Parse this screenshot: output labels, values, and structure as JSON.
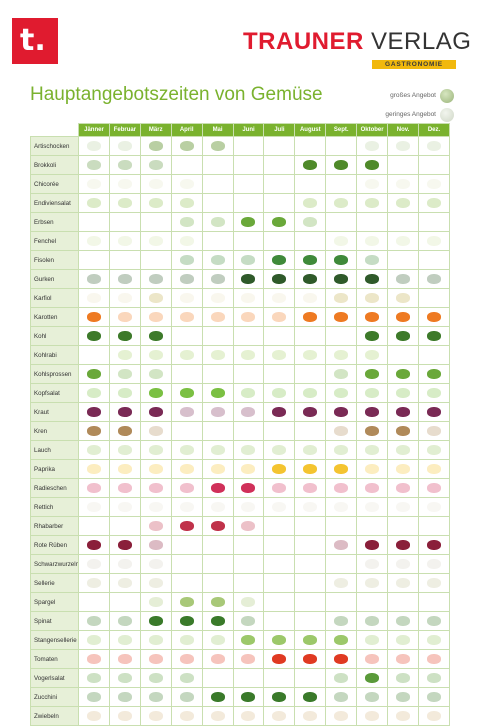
{
  "header": {
    "logo_letter": "t.",
    "brand_bold": "TRAUNER",
    "brand_light": "VERLAG",
    "brand_sub": "GASTRONOMIE"
  },
  "title": "Hauptangebotszeiten von Gemüse",
  "legend": {
    "large_label": "großes Angebot",
    "small_label": "geringes Angebot"
  },
  "months": [
    "Jänner",
    "Februar",
    "März",
    "April",
    "Mai",
    "Juni",
    "Juli",
    "August",
    "Sept.",
    "Oktober",
    "Nov.",
    "Dez."
  ],
  "vegetables": [
    {
      "name": "Artischocken",
      "color": "#b9cfa3",
      "avail": [
        1,
        1,
        2,
        2,
        2,
        0,
        0,
        0,
        0,
        1,
        1,
        1
      ]
    },
    {
      "name": "Brokkoli",
      "color": "#4f8a2a",
      "avail": [
        1,
        1,
        1,
        0,
        0,
        0,
        0,
        2,
        2,
        2,
        0,
        0
      ]
    },
    {
      "name": "Chicorée",
      "color": "#e3e8c9",
      "avail": [
        1,
        1,
        1,
        1,
        0,
        0,
        0,
        0,
        0,
        1,
        1,
        1
      ]
    },
    {
      "name": "Endiviensalat",
      "color": "#8bbd4a",
      "avail": [
        1,
        1,
        1,
        1,
        0,
        0,
        0,
        1,
        1,
        1,
        1,
        1
      ]
    },
    {
      "name": "Erbsen",
      "color": "#6aa83a",
      "avail": [
        0,
        0,
        0,
        1,
        1,
        2,
        2,
        1,
        0,
        0,
        0,
        0
      ]
    },
    {
      "name": "Fenchel",
      "color": "#d3e6b0",
      "avail": [
        1,
        1,
        1,
        1,
        0,
        0,
        0,
        0,
        1,
        1,
        1,
        1
      ]
    },
    {
      "name": "Fisolen",
      "color": "#3f8a3a",
      "avail": [
        0,
        0,
        0,
        1,
        1,
        1,
        2,
        2,
        2,
        1,
        0,
        0
      ]
    },
    {
      "name": "Gurken",
      "color": "#2f5a2a",
      "avail": [
        1,
        1,
        1,
        1,
        1,
        2,
        2,
        2,
        2,
        2,
        1,
        1
      ]
    },
    {
      "name": "Karfiol",
      "color": "#ece6c8",
      "avail": [
        1,
        1,
        2,
        1,
        1,
        1,
        1,
        1,
        2,
        2,
        2,
        0
      ]
    },
    {
      "name": "Karotten",
      "color": "#ee7a22",
      "avail": [
        2,
        1,
        1,
        1,
        1,
        1,
        1,
        2,
        2,
        2,
        2,
        2
      ]
    },
    {
      "name": "Kohl",
      "color": "#3d7a2a",
      "avail": [
        2,
        2,
        2,
        0,
        0,
        0,
        0,
        0,
        0,
        2,
        2,
        2
      ]
    },
    {
      "name": "Kohlrabi",
      "color": "#a9d06a",
      "avail": [
        0,
        1,
        1,
        1,
        1,
        1,
        1,
        1,
        1,
        1,
        0,
        0
      ]
    },
    {
      "name": "Kohlsprossen",
      "color": "#6aa83a",
      "avail": [
        2,
        1,
        1,
        0,
        0,
        0,
        0,
        0,
        1,
        2,
        2,
        2
      ]
    },
    {
      "name": "Kopfsalat",
      "color": "#7bc043",
      "avail": [
        1,
        1,
        2,
        2,
        2,
        1,
        1,
        1,
        1,
        1,
        1,
        1
      ]
    },
    {
      "name": "Kraut",
      "color": "#7a2a55",
      "avail": [
        2,
        2,
        2,
        1,
        1,
        1,
        2,
        2,
        2,
        2,
        2,
        2
      ]
    },
    {
      "name": "Kren",
      "color": "#b08a5a",
      "avail": [
        2,
        2,
        1,
        0,
        0,
        0,
        0,
        0,
        1,
        2,
        2,
        1
      ]
    },
    {
      "name": "Lauch",
      "color": "#9cc86a",
      "avail": [
        1,
        1,
        1,
        1,
        1,
        1,
        1,
        1,
        1,
        1,
        1,
        1
      ]
    },
    {
      "name": "Paprika",
      "color": "#f4c430",
      "avail": [
        1,
        1,
        1,
        1,
        1,
        1,
        2,
        2,
        2,
        1,
        1,
        1
      ]
    },
    {
      "name": "Radieschen",
      "color": "#d0305a",
      "avail": [
        1,
        1,
        1,
        1,
        2,
        2,
        1,
        1,
        1,
        1,
        1,
        1
      ]
    },
    {
      "name": "Rettich",
      "color": "#e8e4d8",
      "avail": [
        1,
        1,
        1,
        1,
        1,
        1,
        1,
        1,
        1,
        1,
        1,
        1
      ]
    },
    {
      "name": "Rhabarber",
      "color": "#c0324a",
      "avail": [
        0,
        0,
        1,
        2,
        2,
        1,
        0,
        0,
        0,
        0,
        0,
        0
      ]
    },
    {
      "name": "Rote Rüben",
      "color": "#8a1f3a",
      "avail": [
        2,
        2,
        1,
        0,
        0,
        0,
        0,
        0,
        1,
        2,
        2,
        2
      ]
    },
    {
      "name": "Schwarzwurzeln",
      "color": "#d8d4c8",
      "avail": [
        1,
        1,
        1,
        0,
        0,
        0,
        0,
        0,
        0,
        1,
        1,
        1
      ]
    },
    {
      "name": "Sellerie",
      "color": "#c8c8a0",
      "avail": [
        1,
        1,
        1,
        0,
        0,
        0,
        0,
        0,
        1,
        1,
        1,
        1
      ]
    },
    {
      "name": "Spargel",
      "color": "#a8c878",
      "avail": [
        0,
        0,
        1,
        2,
        2,
        1,
        0,
        0,
        0,
        0,
        0,
        0
      ]
    },
    {
      "name": "Spinat",
      "color": "#3a7a2a",
      "avail": [
        1,
        1,
        2,
        2,
        2,
        1,
        0,
        0,
        1,
        1,
        1,
        1
      ]
    },
    {
      "name": "Stangensellerie",
      "color": "#9cc86a",
      "avail": [
        1,
        1,
        1,
        1,
        1,
        2,
        2,
        2,
        2,
        1,
        1,
        1
      ]
    },
    {
      "name": "Tomaten",
      "color": "#e03a22",
      "avail": [
        1,
        1,
        1,
        1,
        1,
        1,
        2,
        2,
        2,
        1,
        1,
        1
      ]
    },
    {
      "name": "Vogerlsalat",
      "color": "#5a9a3a",
      "avail": [
        1,
        1,
        1,
        1,
        0,
        0,
        0,
        0,
        1,
        2,
        1,
        1
      ]
    },
    {
      "name": "Zucchini",
      "color": "#3a7a2a",
      "avail": [
        1,
        1,
        1,
        1,
        2,
        2,
        2,
        2,
        1,
        1,
        1,
        1
      ]
    },
    {
      "name": "Zwiebeln",
      "color": "#d8b888",
      "avail": [
        1,
        1,
        1,
        1,
        1,
        1,
        1,
        1,
        1,
        1,
        1,
        1
      ]
    }
  ]
}
